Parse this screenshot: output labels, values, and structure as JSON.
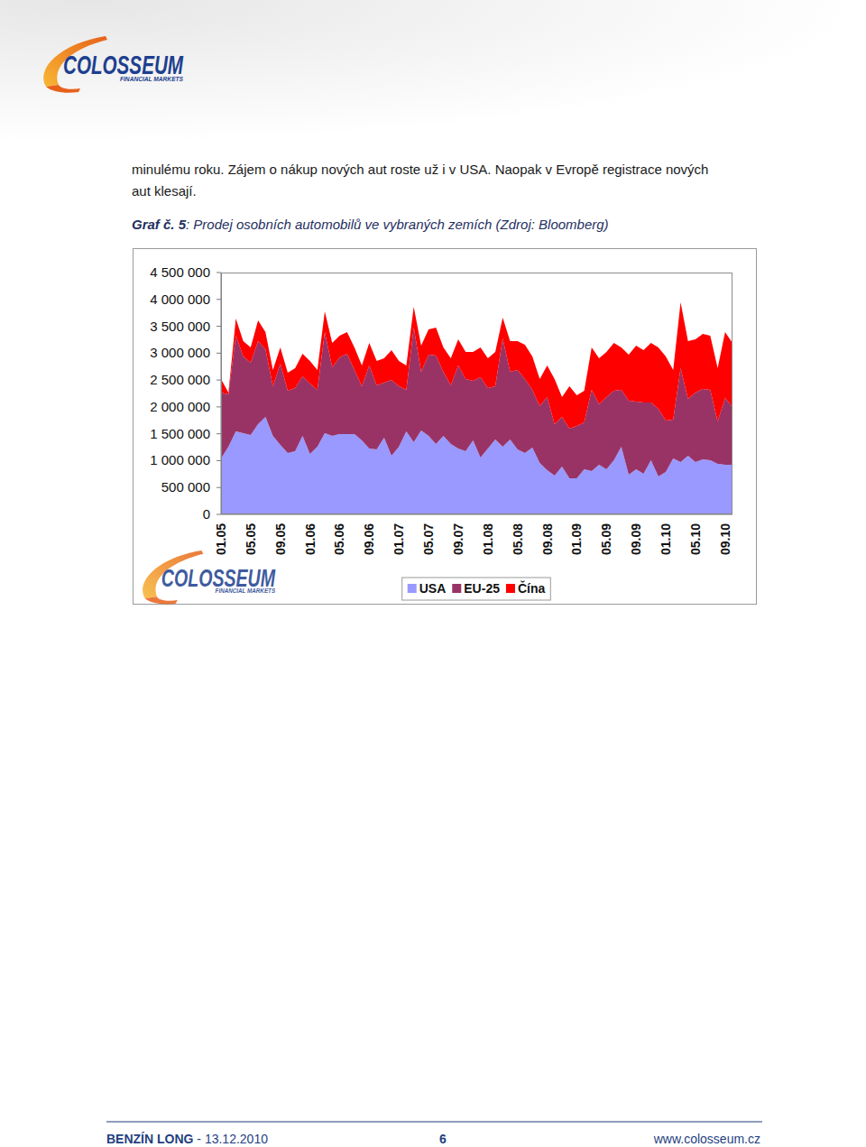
{
  "header": {
    "logo": {
      "name": "COLOSSEUM",
      "tagline": "FINANCIAL MARKETS"
    }
  },
  "body": {
    "lines": [
      "minulému roku. Zájem o nákup nových aut roste už i v USA. Naopak v Evropě registrace nových",
      "aut klesají."
    ]
  },
  "caption": {
    "label": "Graf č. 5",
    "text": ": Prodej osobních automobilů ve vybraných zemích (Zdroj: Bloomberg)"
  },
  "chart_data": {
    "type": "area",
    "stacked": true,
    "grid": false,
    "legend": "bottom",
    "annotations": [
      "COLOSSEUM",
      "FINANCIAL MARKETS"
    ],
    "categories": [
      "01.05",
      null,
      null,
      null,
      "05.05",
      null,
      null,
      null,
      "09.05",
      null,
      null,
      null,
      "01.06",
      null,
      null,
      null,
      "05.06",
      null,
      null,
      null,
      "09.06",
      null,
      null,
      null,
      "01.07",
      null,
      null,
      null,
      "05.07",
      null,
      null,
      null,
      "09.07",
      null,
      null,
      null,
      "01.08",
      null,
      null,
      null,
      "05.08",
      null,
      null,
      null,
      "09.08",
      null,
      null,
      null,
      "01.09",
      null,
      null,
      null,
      "05.09",
      null,
      null,
      null,
      "09.09",
      null,
      null,
      null,
      "01.10",
      null,
      null,
      null,
      "05.10",
      null,
      null,
      null,
      "09.10",
      null
    ],
    "ylim": [
      0,
      4500000
    ],
    "yticks": [
      0,
      {
        "value": 500000,
        "label": "500 000"
      },
      {
        "value": 1000000,
        "label": "1 000 000"
      },
      {
        "value": 1500000,
        "label": "1 500 000"
      },
      {
        "value": 2000000,
        "label": "2 000 000"
      },
      {
        "value": 2500000,
        "label": "2 500 000"
      },
      {
        "value": 3000000,
        "label": "3 000 000"
      },
      {
        "value": 3500000,
        "label": "3 500 000"
      },
      {
        "value": 4000000,
        "label": "4 000 000"
      },
      {
        "value": 4500000,
        "label": "4 500 000"
      }
    ],
    "series": [
      {
        "name": "USA",
        "color": "#9999ff",
        "values": [
          1041000,
          1259000,
          1545000,
          1511000,
          1478000,
          1679000,
          1813000,
          1461000,
          1293000,
          1142000,
          1175000,
          1461000,
          1125000,
          1259000,
          1511000,
          1461000,
          1494000,
          1494000,
          1494000,
          1377000,
          1226000,
          1209000,
          1427000,
          1091000,
          1259000,
          1545000,
          1343000,
          1562000,
          1461000,
          1310000,
          1461000,
          1310000,
          1226000,
          1175000,
          1377000,
          1058000,
          1226000,
          1394000,
          1259000,
          1394000,
          1209000,
          1142000,
          1243000,
          957000,
          823000,
          722000,
          890000,
          672000,
          672000,
          840000,
          806000,
          924000,
          840000,
          1007000,
          1259000,
          739000,
          840000,
          756000,
          1007000,
          705000,
          789000,
          1041000,
          974000,
          1091000,
          974000,
          1024000,
          1007000,
          940000,
          924000,
          924000
        ]
      },
      {
        "name": "EU-25",
        "color": "#993366",
        "values": [
          1226000,
          974000,
          1780000,
          1427000,
          1343000,
          1545000,
          1259000,
          924000,
          1511000,
          1159000,
          1175000,
          1108000,
          1310000,
          1058000,
          1881000,
          1276000,
          1427000,
          1494000,
          1192000,
          1007000,
          1545000,
          1192000,
          1024000,
          1410000,
          1125000,
          772000,
          2132000,
          1091000,
          1511000,
          1646000,
          1192000,
          1091000,
          1545000,
          1343000,
          1108000,
          1494000,
          1125000,
          991000,
          2015000,
          1259000,
          1478000,
          1377000,
          1075000,
          1058000,
          1360000,
          957000,
          924000,
          924000,
          974000,
          873000,
          1511000,
          1125000,
          1343000,
          1293000,
          1058000,
          1377000,
          1259000,
          1326000,
          1075000,
          1259000,
          957000,
          722000,
          1746000,
          1058000,
          1293000,
          1310000,
          1310000,
          789000,
          1243000,
          1075000
        ]
      },
      {
        "name": "Čína",
        "color": "#ff0000",
        "values": [
          252000,
          34000,
          319000,
          285000,
          285000,
          386000,
          319000,
          302000,
          302000,
          336000,
          369000,
          420000,
          420000,
          369000,
          386000,
          453000,
          403000,
          403000,
          420000,
          386000,
          420000,
          453000,
          453000,
          554000,
          470000,
          453000,
          386000,
          487000,
          470000,
          521000,
          453000,
          504000,
          487000,
          504000,
          537000,
          554000,
          554000,
          638000,
          386000,
          571000,
          537000,
          638000,
          621000,
          504000,
          588000,
          840000,
          369000,
          789000,
          571000,
          588000,
          789000,
          856000,
          840000,
          890000,
          789000,
          856000,
          1041000,
          974000,
          1108000,
          1142000,
          1192000,
          924000,
          1226000,
          1075000,
          991000,
          1024000,
          1007000,
          991000,
          1226000,
          1192000
        ]
      }
    ]
  },
  "footer": {
    "title": "BENZÍN LONG",
    "date": " - 13.12.2010",
    "page": "6",
    "url": "www.colosseum.cz"
  }
}
